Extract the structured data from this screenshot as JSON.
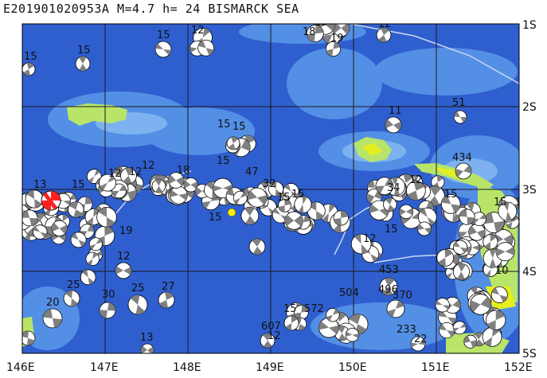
{
  "header": {
    "title": "E201901020953A  M=4.7  h=  24  BISMARCK SEA"
  },
  "axes": {
    "lat_labels": [
      "1S",
      "2S",
      "3S",
      "4S",
      "5S"
    ],
    "lon_labels": [
      "146E",
      "147E",
      "148E",
      "149E",
      "150E",
      "151E",
      "152E"
    ]
  },
  "mechanism_labels": [
    "15",
    "15",
    "15",
    "12",
    "18",
    "15",
    "19",
    "12",
    "11",
    "51",
    "15",
    "15",
    "434",
    "15",
    "12",
    "12",
    "12",
    "13",
    "15",
    "47",
    "32",
    "15",
    "34",
    "12",
    "15",
    "15",
    "19",
    "15",
    "12",
    "12",
    "15",
    "15",
    "10",
    "25",
    "25",
    "27",
    "20",
    "30",
    "453",
    "496",
    "504",
    "370",
    "572",
    "607",
    "15",
    "13",
    "233",
    "22",
    "12",
    "15",
    "18"
  ],
  "colors": {
    "ocean_deep": "#2f5fcf",
    "ocean_shallow": "#5fa0ee",
    "land": "#b8e46a",
    "land_high": "#e6ee20",
    "event_beachball": "#ff2020",
    "epicenter_marker": "#ffee00",
    "mechanism_fill": "#808080"
  }
}
